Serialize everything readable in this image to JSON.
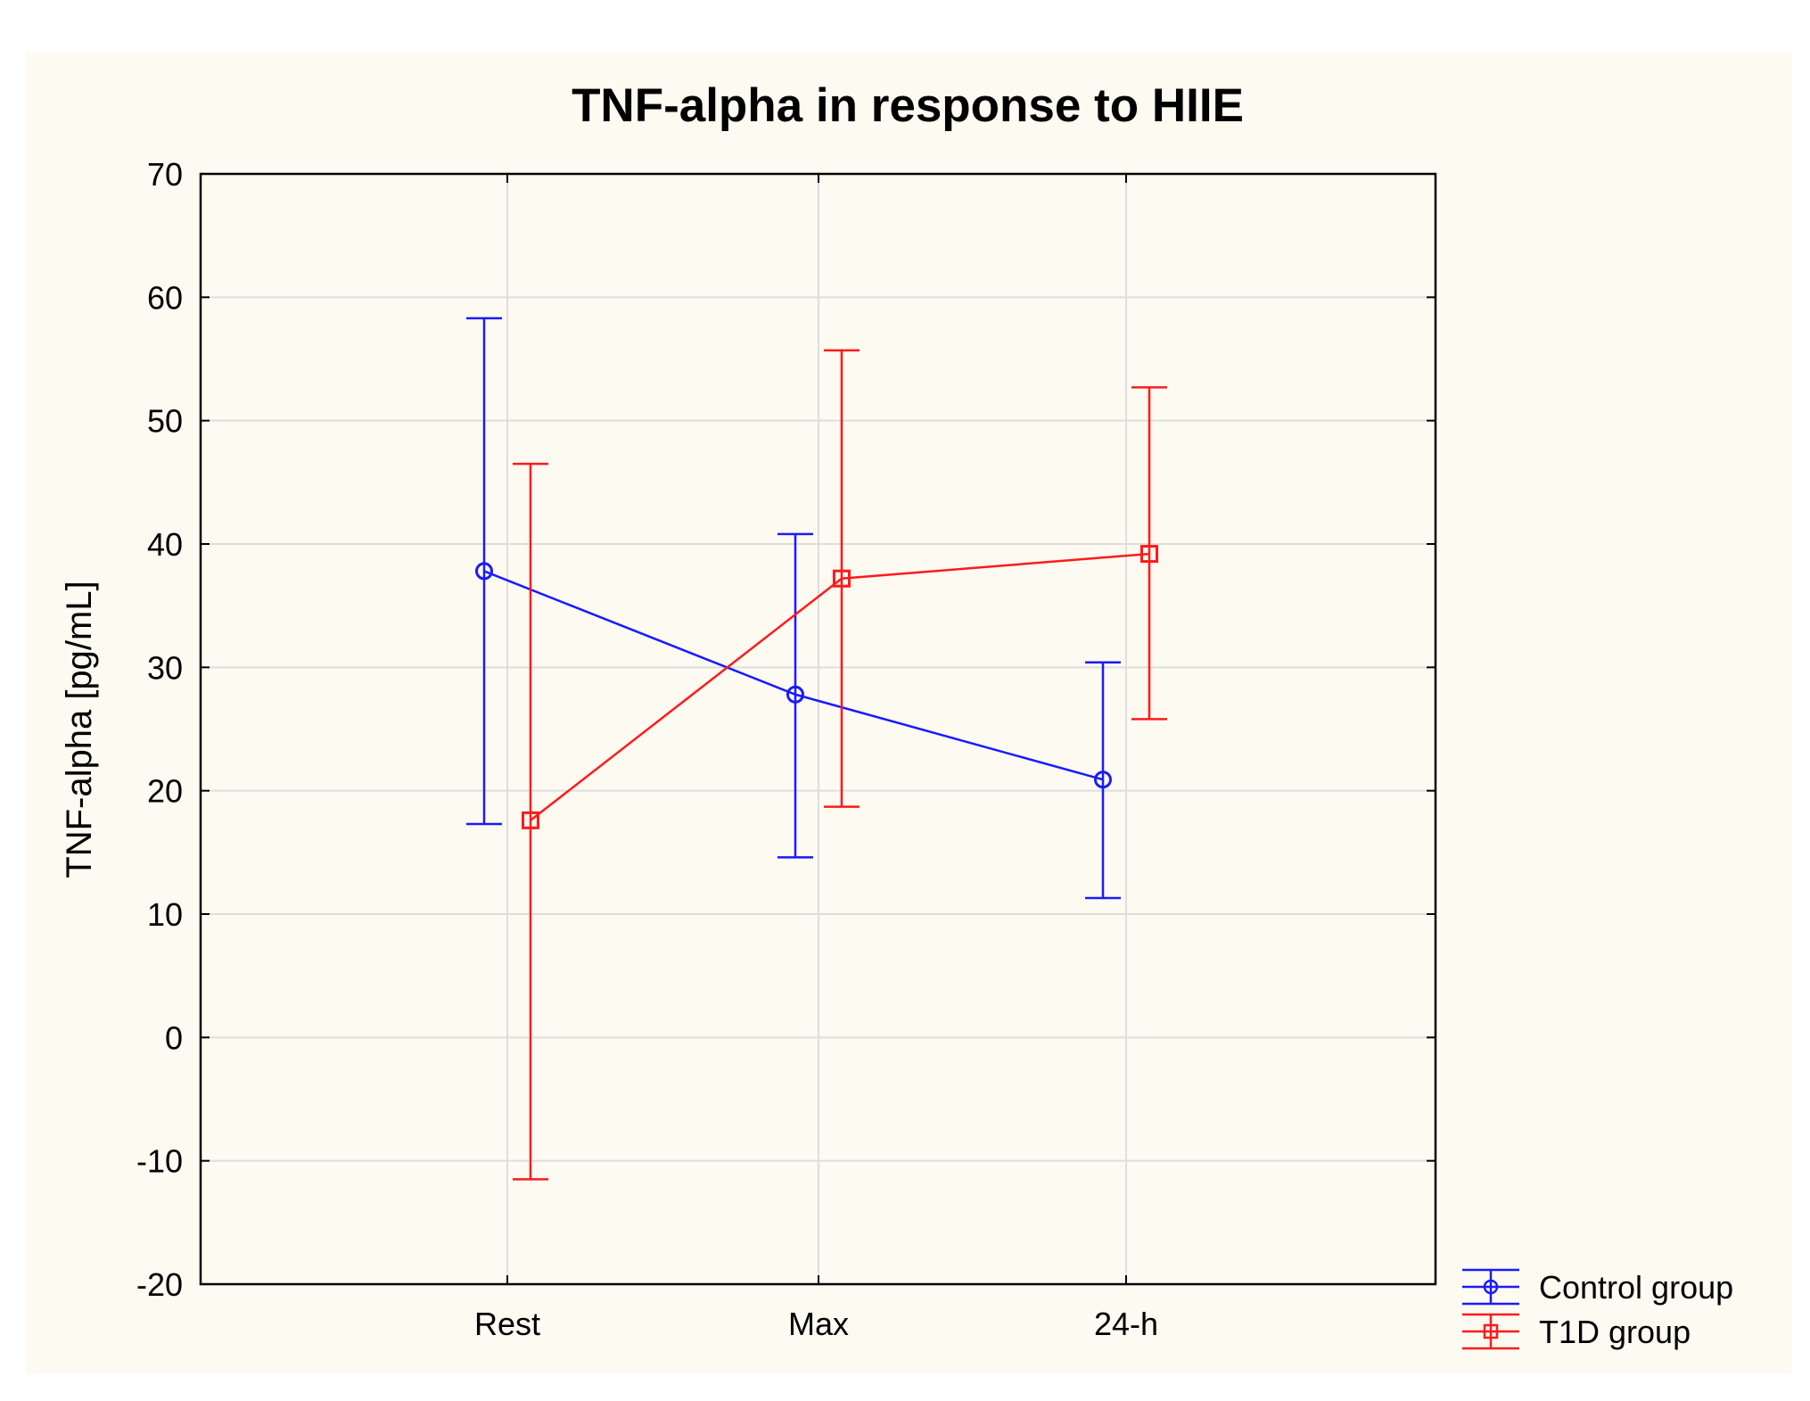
{
  "chart_data": {
    "type": "line",
    "title": "TNF-alpha in response to HIIE",
    "xlabel": "",
    "ylabel": "TNF-alpha [pg/mL]",
    "categories": [
      "Rest",
      "Max",
      "24-h"
    ],
    "ylim": [
      -20,
      70
    ],
    "yticks": [
      -20,
      -10,
      0,
      10,
      20,
      30,
      40,
      50,
      60,
      70
    ],
    "ytick_labels": [
      "-20",
      "-10",
      "0",
      "10",
      "20",
      "30",
      "40",
      "50",
      "60",
      "70"
    ],
    "grid": true,
    "legend_position": "bottom-right outside plot",
    "series": [
      {
        "name": "Control group",
        "color": "#1a1aff",
        "marker": "circle",
        "values": [
          37.8,
          27.8,
          20.9
        ],
        "error_low": [
          17.3,
          14.6,
          11.3
        ],
        "error_high": [
          58.3,
          40.8,
          30.4
        ]
      },
      {
        "name": "T1D group",
        "color": "#ff1a1a",
        "marker": "square",
        "values": [
          17.6,
          37.2,
          39.2
        ],
        "error_low": [
          -11.5,
          18.7,
          25.8
        ],
        "error_high": [
          46.5,
          55.7,
          52.7
        ]
      }
    ]
  }
}
